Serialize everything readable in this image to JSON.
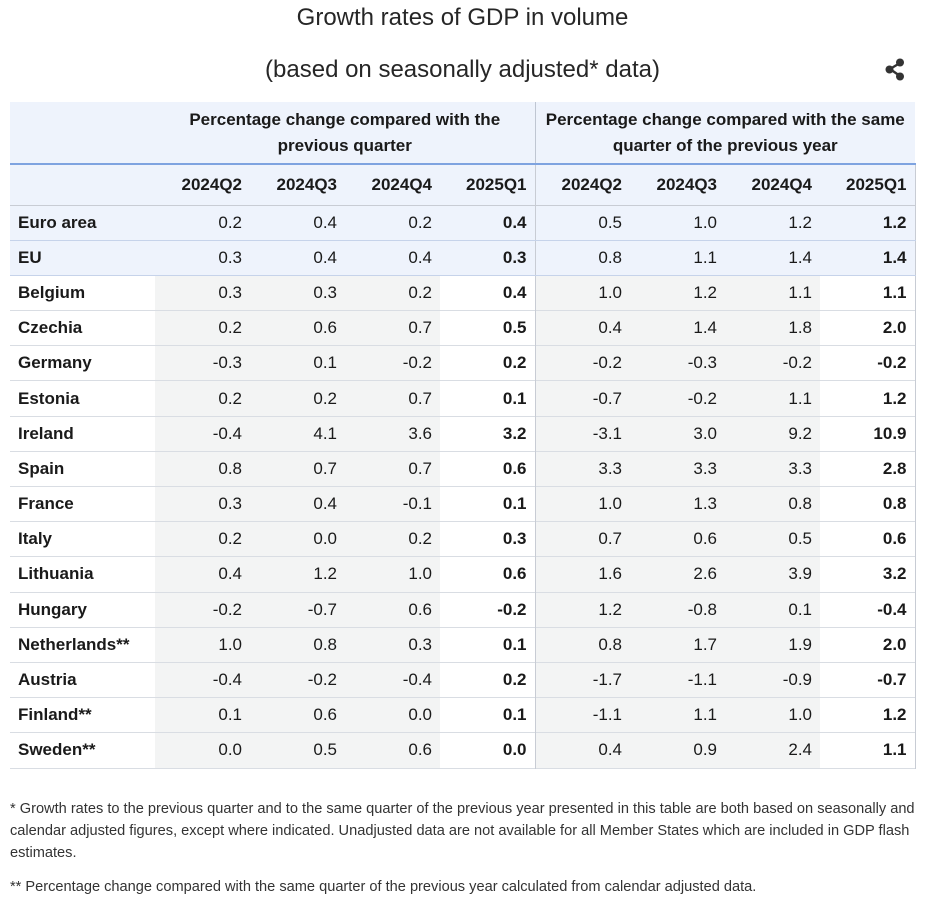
{
  "title_line1": "Growth rates of GDP in volume",
  "title_line2": "(based on seasonally adjusted* data)",
  "share_icon": "share-icon",
  "colors": {
    "header_bg": "#eef3fc",
    "header_rule": "#7ea3e0",
    "row_shade": "#f3f4f4",
    "grid": "#d9dde3"
  },
  "table": {
    "group_headers": [
      "Percentage change compared with the previous quarter",
      "Percentage change compared with the same quarter of the previous year"
    ],
    "periods": [
      "2024Q2",
      "2024Q3",
      "2024Q4",
      "2025Q1",
      "2024Q2",
      "2024Q3",
      "2024Q4",
      "2025Q1"
    ]
  },
  "chart_data": {
    "type": "table",
    "title": "Growth rates of GDP in volume",
    "subtitle": "(based on seasonally adjusted* data)",
    "column_groups": [
      {
        "label": "Percentage change compared with the previous quarter",
        "columns": [
          "2024Q2",
          "2024Q3",
          "2024Q4",
          "2025Q1"
        ]
      },
      {
        "label": "Percentage change compared with the same quarter of the previous year",
        "columns": [
          "2024Q2",
          "2024Q3",
          "2024Q4",
          "2025Q1"
        ]
      }
    ],
    "rows": [
      {
        "label": "Euro area",
        "values": [
          "0.2",
          "0.4",
          "0.2",
          "0.4",
          "0.5",
          "1.0",
          "1.2",
          "1.2"
        ]
      },
      {
        "label": "EU",
        "values": [
          "0.3",
          "0.4",
          "0.4",
          "0.3",
          "0.8",
          "1.1",
          "1.4",
          "1.4"
        ]
      },
      {
        "label": "Belgium",
        "values": [
          "0.3",
          "0.3",
          "0.2",
          "0.4",
          "1.0",
          "1.2",
          "1.1",
          "1.1"
        ]
      },
      {
        "label": "Czechia",
        "values": [
          "0.2",
          "0.6",
          "0.7",
          "0.5",
          "0.4",
          "1.4",
          "1.8",
          "2.0"
        ]
      },
      {
        "label": "Germany",
        "values": [
          "-0.3",
          "0.1",
          "-0.2",
          "0.2",
          "-0.2",
          "-0.3",
          "-0.2",
          "-0.2"
        ]
      },
      {
        "label": "Estonia",
        "values": [
          "0.2",
          "0.2",
          "0.7",
          "0.1",
          "-0.7",
          "-0.2",
          "1.1",
          "1.2"
        ]
      },
      {
        "label": "Ireland",
        "values": [
          "-0.4",
          "4.1",
          "3.6",
          "3.2",
          "-3.1",
          "3.0",
          "9.2",
          "10.9"
        ]
      },
      {
        "label": "Spain",
        "values": [
          "0.8",
          "0.7",
          "0.7",
          "0.6",
          "3.3",
          "3.3",
          "3.3",
          "2.8"
        ]
      },
      {
        "label": "France",
        "values": [
          "0.3",
          "0.4",
          "-0.1",
          "0.1",
          "1.0",
          "1.3",
          "0.8",
          "0.8"
        ]
      },
      {
        "label": "Italy",
        "values": [
          "0.2",
          "0.0",
          "0.2",
          "0.3",
          "0.7",
          "0.6",
          "0.5",
          "0.6"
        ]
      },
      {
        "label": "Lithuania",
        "values": [
          "0.4",
          "1.2",
          "1.0",
          "0.6",
          "1.6",
          "2.6",
          "3.9",
          "3.2"
        ]
      },
      {
        "label": "Hungary",
        "values": [
          "-0.2",
          "-0.7",
          "0.6",
          "-0.2",
          "1.2",
          "-0.8",
          "0.1",
          "-0.4"
        ]
      },
      {
        "label": "Netherlands**",
        "values": [
          "1.0",
          "0.8",
          "0.3",
          "0.1",
          "0.8",
          "1.7",
          "1.9",
          "2.0"
        ]
      },
      {
        "label": "Austria",
        "values": [
          "-0.4",
          "-0.2",
          "-0.4",
          "0.2",
          "-1.7",
          "-1.1",
          "-0.9",
          "-0.7"
        ]
      },
      {
        "label": "Finland**",
        "values": [
          "0.1",
          "0.6",
          "0.0",
          "0.1",
          "-1.1",
          "1.1",
          "1.0",
          "1.2"
        ]
      },
      {
        "label": "Sweden**",
        "values": [
          "0.0",
          "0.5",
          "0.6",
          "0.0",
          "0.4",
          "0.9",
          "2.4",
          "1.1"
        ]
      }
    ]
  },
  "footnotes": [
    "* Growth rates to the previous quarter and to the same quarter of the previous year presented in this table are both based on seasonally and calendar adjusted figures, except where indicated. Unadjusted data are not available for all Member States which are included in GDP flash estimates.",
    "** Percentage change compared with the same quarter of the previous year calculated from calendar adjusted data."
  ]
}
